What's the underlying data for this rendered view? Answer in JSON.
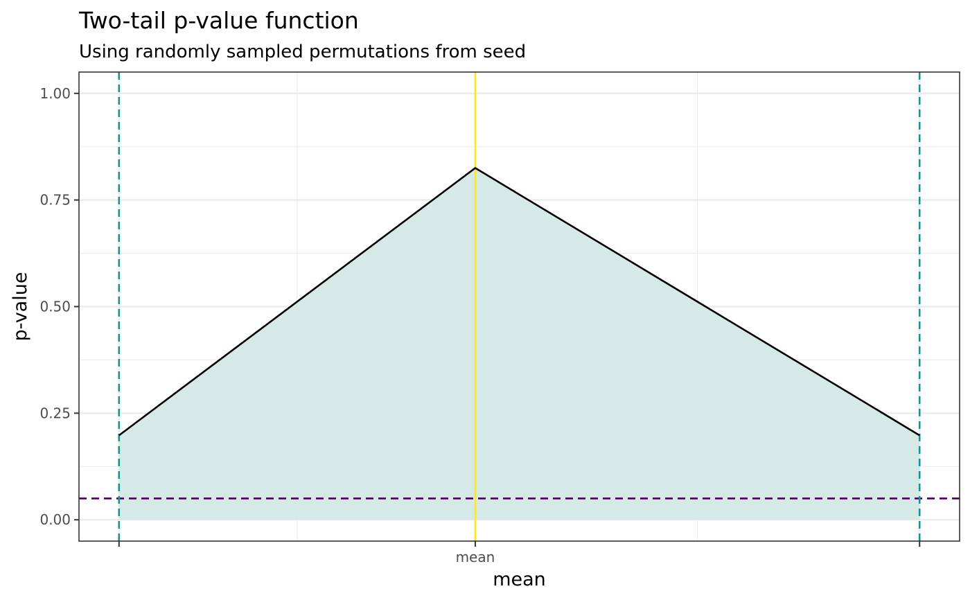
{
  "chart_data": {
    "type": "area",
    "title": "Two-tail  p-value function",
    "subtitle": "Using  randomly sampled permutations from seed",
    "xlabel": "mean",
    "ylabel": "p-value",
    "x_tick_labels": [
      "",
      "mean",
      ""
    ],
    "y_ticks": [
      0.0,
      0.25,
      0.5,
      0.75,
      1.0
    ],
    "y_tick_labels": [
      "0.00",
      "0.25",
      "0.50",
      "0.75",
      "1.00"
    ],
    "ylim": [
      -0.05,
      1.05
    ],
    "xlim": [
      -0.05,
      1.05
    ],
    "grid": true,
    "series": [
      {
        "x": [
          0.0,
          0.445,
          1.0
        ],
        "values": [
          0.198,
          0.825,
          0.198
        ]
      }
    ],
    "significance_level": 0.05,
    "point_estimate_x": 0.445,
    "interval_bounds_x": [
      0.0,
      1.0
    ],
    "colors": {
      "fill": "#d3e8e6",
      "curve": "#000000",
      "interval": "#21908c",
      "estimate": "#fde725",
      "significance": "#440154",
      "panel_border": "#333333",
      "grid": "#ebebeb"
    }
  }
}
